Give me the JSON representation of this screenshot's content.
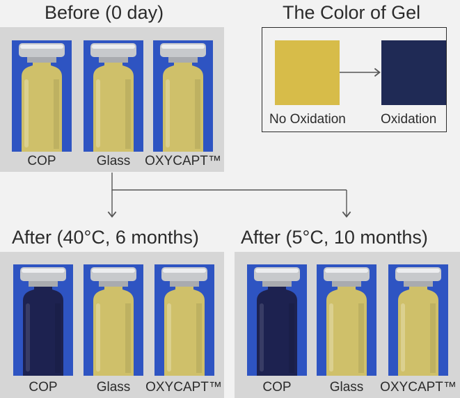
{
  "titles": {
    "before": "Before (0 day)",
    "color_of_gel": "The Color of Gel",
    "after_40c": "After (40°C, 6 months)",
    "after_5c": "After (5°C, 10 months)"
  },
  "vial_labels": {
    "cop": "COP",
    "glass": "Glass",
    "oxycapt": "OXYCAPT™"
  },
  "legend": {
    "no_oxidation": "No Oxidation",
    "oxidation": "Oxidation",
    "no_oxidation_color": "#d7bc49",
    "oxidation_color": "#1f2a55"
  },
  "colors": {
    "vial_background": "#2e54c2",
    "gel_unoxidized": "#cfc06a",
    "gel_oxidized": "#1d2250"
  }
}
